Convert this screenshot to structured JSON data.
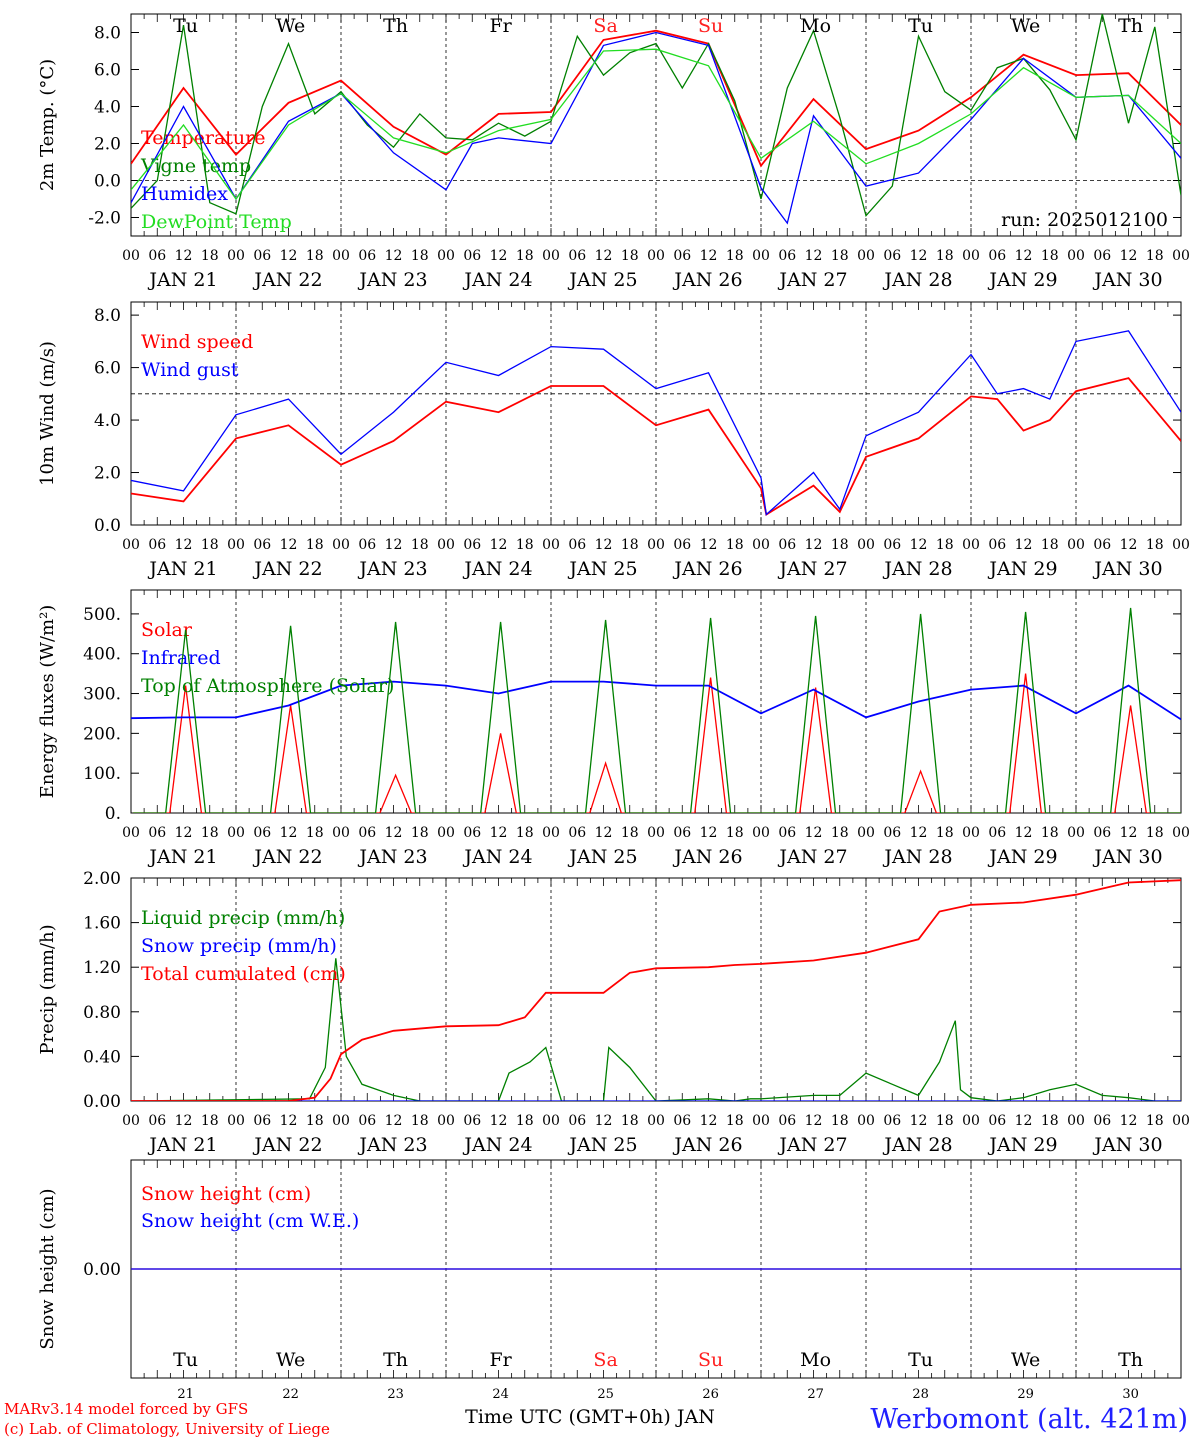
{
  "header": {
    "day_names": [
      "Tu",
      "We",
      "Th",
      "Fr",
      "Sa",
      "Su",
      "Mo",
      "Tu",
      "We",
      "Th"
    ],
    "weekend_color": "#ff2020",
    "run_label": "run: 2025012100"
  },
  "time_axis": {
    "start": "2025-01-21 00:00 UTC",
    "days": 10,
    "hour_ticks": [
      "00",
      "06",
      "12",
      "18"
    ],
    "date_labels": [
      "JAN 21",
      "JAN 22",
      "JAN 23",
      "JAN 24",
      "JAN 25",
      "JAN 26",
      "JAN 27",
      "JAN 28",
      "JAN 29",
      "JAN 30"
    ],
    "footer_days": [
      "21",
      "22",
      "23",
      "24",
      "25",
      "26",
      "27",
      "28",
      "29",
      "30"
    ],
    "footer_title": "Time UTC (GMT+0h) JAN"
  },
  "credits": {
    "line1": "MARv3.14 model forced by GFS",
    "line2": "(c) Lab. of Climatology, University of Liege"
  },
  "station": "Werbomont (alt. 421m)",
  "colors": {
    "red": "#ff0000",
    "green": "#008000",
    "blue": "#0000ff",
    "lime": "#22dd22"
  },
  "chart_data": [
    {
      "type": "line",
      "ylabel": "2m Temp. (°C)",
      "ylim": [
        -3,
        9
      ],
      "yticks": [
        "-2.0",
        "0.0",
        "2.0",
        "4.0",
        "6.0",
        "8.0"
      ],
      "ytick_values": [
        -2,
        0,
        2,
        4,
        6,
        8
      ],
      "ref_line": 0,
      "series": [
        {
          "name": "Temperature",
          "color": "#ff0000",
          "x": [
            0,
            0.5,
            1,
            1.5,
            2,
            2.5,
            3,
            3.5,
            4,
            4.5,
            5,
            5.5,
            6,
            6.5,
            7,
            7.5,
            8,
            8.5,
            9,
            9.5,
            10
          ],
          "y": [
            0.9,
            5.0,
            1.4,
            4.2,
            5.4,
            2.9,
            1.4,
            3.6,
            3.7,
            7.6,
            8.1,
            7.4,
            0.8,
            4.4,
            1.7,
            2.7,
            4.5,
            6.8,
            5.7,
            5.8,
            3.0
          ]
        },
        {
          "name": "Vigne temp",
          "color": "#008000",
          "x": [
            0,
            0.25,
            0.5,
            0.75,
            1,
            1.25,
            1.5,
            1.75,
            2,
            2.25,
            2.5,
            2.75,
            3,
            3.25,
            3.5,
            3.75,
            4,
            4.25,
            4.5,
            4.75,
            5,
            5.25,
            5.5,
            5.75,
            6,
            6.25,
            6.5,
            6.75,
            7,
            7.25,
            7.5,
            7.75,
            8,
            8.25,
            8.5,
            8.75,
            9,
            9.25,
            9.5,
            9.75,
            10
          ],
          "y": [
            -1.5,
            0.0,
            8.4,
            -1.2,
            -1.8,
            4.0,
            7.4,
            3.6,
            4.8,
            3.0,
            1.8,
            3.6,
            2.3,
            2.2,
            3.1,
            2.4,
            3.2,
            7.8,
            5.7,
            6.9,
            7.4,
            5.0,
            7.4,
            4.3,
            -1.0,
            5.0,
            8.1,
            3.4,
            -1.9,
            -0.3,
            7.8,
            4.8,
            3.8,
            6.1,
            6.6,
            4.9,
            2.2,
            9.0,
            3.1,
            8.3,
            -0.8
          ]
        },
        {
          "name": "Humidex",
          "color": "#0000ff",
          "x": [
            0,
            0.5,
            1,
            1.5,
            2,
            2.5,
            3,
            3.25,
            3.5,
            4,
            4.5,
            5,
            5.5,
            6,
            6.25,
            6.5,
            7,
            7.5,
            8,
            8.5,
            9,
            9.5,
            10
          ],
          "y": [
            -1.2,
            4.0,
            -1.0,
            3.2,
            4.7,
            1.5,
            -0.5,
            2.0,
            2.3,
            2.0,
            7.3,
            8.0,
            7.3,
            -0.4,
            -2.3,
            3.5,
            -0.3,
            0.4,
            3.3,
            6.6,
            4.5,
            4.6,
            1.2
          ]
        },
        {
          "name": "DewPoint Temp",
          "color": "#22dd22",
          "x": [
            0,
            0.5,
            1,
            1.5,
            2,
            2.5,
            3,
            3.5,
            4,
            4.5,
            5,
            5.5,
            6,
            6.5,
            7,
            7.5,
            8,
            8.5,
            9,
            9.5,
            10
          ],
          "y": [
            -0.5,
            3.0,
            -1.0,
            3.0,
            4.7,
            2.3,
            1.5,
            2.7,
            3.3,
            7.0,
            7.1,
            6.2,
            1.2,
            3.2,
            0.9,
            2.0,
            3.6,
            6.1,
            4.5,
            4.6,
            2.0
          ]
        }
      ]
    },
    {
      "type": "line",
      "ylabel": "10m Wind (m/s)",
      "ylim": [
        0,
        8.5
      ],
      "yticks": [
        "0.0",
        "2.0",
        "4.0",
        "6.0",
        "8.0"
      ],
      "ytick_values": [
        0,
        2,
        4,
        6,
        8
      ],
      "ref_line": 5,
      "series": [
        {
          "name": "Wind speed",
          "color": "#ff0000",
          "x": [
            0,
            0.5,
            1,
            1.5,
            2,
            2.5,
            3,
            3.5,
            4,
            4.5,
            5,
            5.5,
            6,
            6.05,
            6.5,
            6.75,
            7,
            7.5,
            8,
            8.25,
            8.5,
            8.75,
            9,
            9.5,
            10
          ],
          "y": [
            1.2,
            0.9,
            3.3,
            3.8,
            2.3,
            3.2,
            4.7,
            4.3,
            5.3,
            5.3,
            3.8,
            4.4,
            1.4,
            0.4,
            1.5,
            0.5,
            2.6,
            3.3,
            4.9,
            4.8,
            3.6,
            4.0,
            5.1,
            5.6,
            3.2
          ]
        },
        {
          "name": "Wind gust",
          "color": "#0000ff",
          "x": [
            0,
            0.5,
            1,
            1.5,
            2,
            2.5,
            3,
            3.5,
            4,
            4.5,
            5,
            5.5,
            6,
            6.05,
            6.5,
            6.75,
            7,
            7.5,
            8,
            8.25,
            8.5,
            8.75,
            9,
            9.5,
            10
          ],
          "y": [
            1.7,
            1.3,
            4.2,
            4.8,
            2.7,
            4.3,
            6.2,
            5.7,
            6.8,
            6.7,
            5.2,
            5.8,
            1.8,
            0.4,
            2.0,
            0.6,
            3.4,
            4.3,
            6.5,
            5.0,
            5.2,
            4.8,
            7.0,
            7.4,
            4.3
          ]
        }
      ]
    },
    {
      "type": "line",
      "ylabel": "Energy fluxes (W/m²)",
      "ylim": [
        0,
        560
      ],
      "yticks": [
        "0.",
        "100.",
        "200.",
        "300.",
        "400.",
        "500."
      ],
      "ytick_values": [
        0,
        100,
        200,
        300,
        400,
        500
      ],
      "series": [
        {
          "name": "Solar",
          "color": "#ff0000",
          "noon_peaks": [
            320,
            270,
            95,
            200,
            125,
            340,
            315,
            105,
            350,
            270
          ]
        },
        {
          "name": "Infrared",
          "color": "#0000ff",
          "x": [
            0,
            0.5,
            1,
            1.5,
            2,
            2.5,
            3,
            3.5,
            4,
            4.5,
            5,
            5.5,
            6,
            6.5,
            7,
            7.5,
            8,
            8.5,
            9,
            9.5,
            10
          ],
          "y": [
            238,
            240,
            240,
            270,
            320,
            330,
            320,
            300,
            330,
            330,
            320,
            320,
            250,
            310,
            240,
            280,
            310,
            320,
            250,
            320,
            235
          ]
        },
        {
          "name": "Top of Atmosphere (Solar)",
          "color": "#008000",
          "noon_peaks": [
            460,
            470,
            480,
            480,
            485,
            490,
            495,
            500,
            505,
            515
          ]
        }
      ]
    },
    {
      "type": "line",
      "ylabel": "Precip (mm/h)",
      "ylim": [
        0,
        2.0
      ],
      "yticks": [
        "0.00",
        "0.40",
        "0.80",
        "1.20",
        "1.60",
        "2.00"
      ],
      "ytick_values": [
        0,
        0.4,
        0.8,
        1.2,
        1.6,
        2.0
      ],
      "series": [
        {
          "name": "Liquid precip (mm/h)",
          "color": "#008000",
          "x": [
            0,
            1.7,
            1.85,
            1.95,
            2.05,
            2.2,
            2.5,
            2.75,
            3.5,
            3.6,
            3.8,
            3.95,
            4.1,
            4.5,
            4.55,
            4.75,
            5.0,
            5.5,
            5.75,
            5.9,
            6.0,
            6.5,
            6.75,
            7.0,
            7.25,
            7.5,
            7.7,
            7.85,
            7.9,
            8.0,
            8.25,
            8.5,
            8.75,
            9.0,
            9.25,
            9.5,
            9.75,
            10
          ],
          "y": [
            0,
            0.02,
            0.3,
            1.28,
            0.4,
            0.15,
            0.05,
            0.0,
            0.0,
            0.25,
            0.35,
            0.48,
            0.0,
            0.0,
            0.48,
            0.3,
            0.0,
            0.02,
            0.0,
            0.02,
            0.02,
            0.05,
            0.05,
            0.25,
            0.15,
            0.05,
            0.35,
            0.72,
            0.1,
            0.03,
            0.0,
            0.03,
            0.1,
            0.15,
            0.05,
            0.03,
            0.0,
            0.0
          ]
        },
        {
          "name": "Snow precip (mm/h)",
          "color": "#0000ff",
          "x": [
            0,
            10
          ],
          "y": [
            0,
            0
          ]
        },
        {
          "name": "Total cumulated (cm)",
          "color": "#ff0000",
          "x": [
            0,
            1.5,
            1.75,
            1.9,
            2.0,
            2.2,
            2.5,
            3.0,
            3.5,
            3.75,
            3.95,
            4.5,
            4.75,
            5.0,
            5.5,
            5.75,
            6.0,
            6.5,
            7.0,
            7.5,
            7.7,
            8.0,
            8.5,
            9.0,
            9.5,
            10
          ],
          "y": [
            0,
            0,
            0.03,
            0.2,
            0.42,
            0.55,
            0.63,
            0.67,
            0.68,
            0.75,
            0.97,
            0.97,
            1.15,
            1.19,
            1.2,
            1.22,
            1.23,
            1.26,
            1.33,
            1.45,
            1.7,
            1.76,
            1.78,
            1.85,
            1.96,
            1.98
          ]
        }
      ]
    },
    {
      "type": "line",
      "ylabel": "Snow height (cm)",
      "ylim": [
        -1,
        1
      ],
      "yticks": [
        "0.00"
      ],
      "ytick_values": [
        0
      ],
      "series": [
        {
          "name": "Snow height (cm)",
          "color": "#ff0000",
          "x": [
            0,
            10
          ],
          "y": [
            0,
            0
          ]
        },
        {
          "name": "Snow height (cm W.E.)",
          "color": "#0000ff",
          "x": [
            0,
            10
          ],
          "y": [
            0,
            0
          ]
        }
      ]
    }
  ]
}
